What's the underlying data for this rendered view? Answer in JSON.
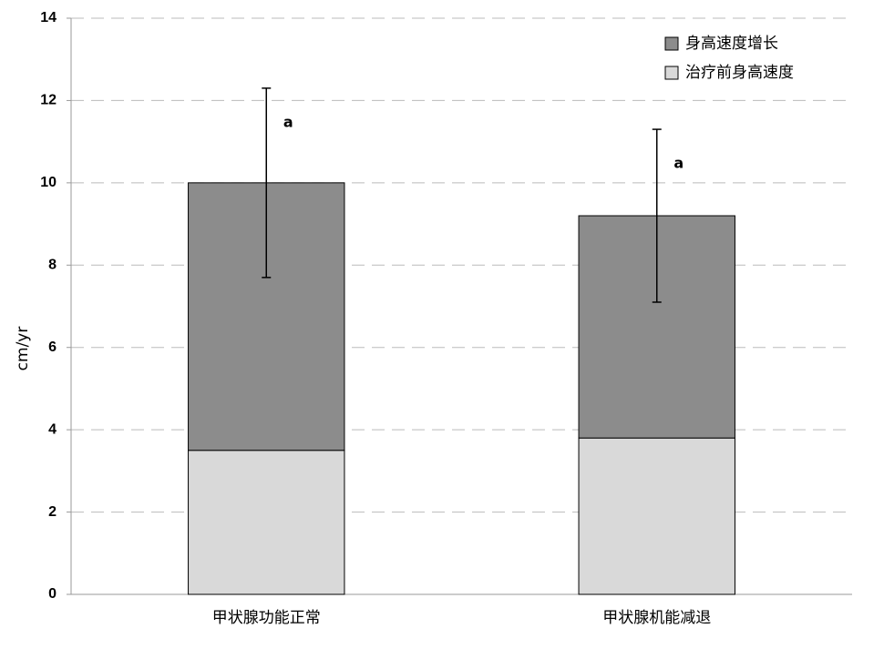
{
  "chart_data": {
    "type": "stacked_bar",
    "y_label": "cm/yr",
    "categories": [
      "甲状腺功能正常",
      "甲状腺机能减退"
    ],
    "series": [
      {
        "name": "治疗前身高速度",
        "color": "#d9d9d9",
        "values": [
          3.5,
          3.8
        ]
      },
      {
        "name": "身高速度增长",
        "color": "#8c8c8c",
        "values": [
          6.5,
          5.4
        ],
        "errors": [
          2.3,
          2.1
        ]
      }
    ],
    "annotations": [
      "a",
      "a"
    ],
    "ylim": [
      0,
      14
    ],
    "yticks": [
      0,
      2,
      4,
      6,
      8,
      10,
      12,
      14
    ],
    "grid": true,
    "legend": "top-right"
  }
}
